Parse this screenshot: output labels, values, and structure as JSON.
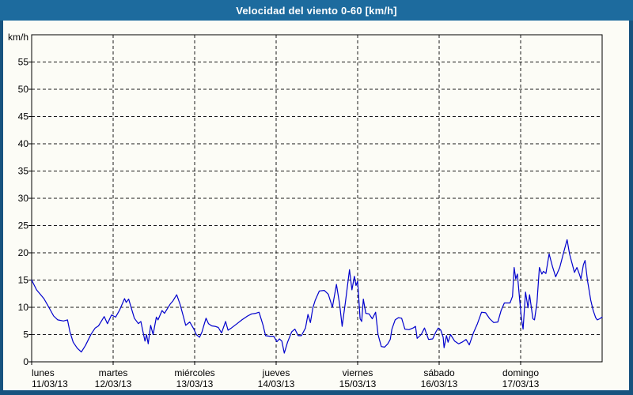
{
  "window": {
    "title": "Velocidad del viento 0-60 [km/h]"
  },
  "colors": {
    "titlebar_bg": "#1d6b9e",
    "titlebar_text": "#ffffff",
    "frame_border": "#17537f",
    "panel_bg": "#fcfcf6",
    "plot_frame": "#000000",
    "grid": "#1a1a1a",
    "line": "#0000cd",
    "axis_text": "#000000"
  },
  "chart_data": {
    "type": "line",
    "title": "Velocidad del viento 0-60 [km/h]",
    "ylabel": "km/h",
    "xlabel": "",
    "ylim": [
      0,
      60
    ],
    "grid": "dashed",
    "legend_position": "none",
    "y_axis": {
      "unit_label": "km/h",
      "tick_step": 5,
      "tick_labels": [
        0,
        5,
        10,
        15,
        20,
        25,
        30,
        35,
        40,
        45,
        50,
        55
      ]
    },
    "x_axis": {
      "days": [
        {
          "name": "lunes",
          "date": "11/03/13"
        },
        {
          "name": "martes",
          "date": "12/03/13"
        },
        {
          "name": "miércoles",
          "date": "13/03/13"
        },
        {
          "name": "jueves",
          "date": "14/03/13"
        },
        {
          "name": "viernes",
          "date": "15/03/13"
        },
        {
          "name": "sábado",
          "date": "16/03/13"
        },
        {
          "name": "domingo",
          "date": "17/03/13"
        }
      ],
      "span_days": 7
    },
    "series": [
      {
        "name": "Velocidad del viento",
        "color": "#0000cd",
        "x_unit": "days_since_start",
        "y_unit": "km/h",
        "points": [
          [
            0.0,
            15.0
          ],
          [
            0.06,
            13.2
          ],
          [
            0.15,
            11.6
          ],
          [
            0.2,
            10.3
          ],
          [
            0.27,
            8.4
          ],
          [
            0.32,
            7.7
          ],
          [
            0.39,
            7.5
          ],
          [
            0.44,
            7.7
          ],
          [
            0.47,
            5.5
          ],
          [
            0.51,
            3.6
          ],
          [
            0.56,
            2.5
          ],
          [
            0.61,
            1.8
          ],
          [
            0.66,
            3.0
          ],
          [
            0.73,
            5.1
          ],
          [
            0.78,
            6.2
          ],
          [
            0.82,
            6.6
          ],
          [
            0.89,
            8.3
          ],
          [
            0.93,
            7.0
          ],
          [
            0.98,
            8.6
          ],
          [
            1.03,
            8.2
          ],
          [
            1.08,
            9.5
          ],
          [
            1.14,
            11.6
          ],
          [
            1.16,
            10.9
          ],
          [
            1.19,
            11.5
          ],
          [
            1.26,
            8.0
          ],
          [
            1.31,
            7.0
          ],
          [
            1.34,
            7.4
          ],
          [
            1.39,
            3.8
          ],
          [
            1.41,
            5.0
          ],
          [
            1.43,
            3.3
          ],
          [
            1.46,
            6.7
          ],
          [
            1.49,
            5.0
          ],
          [
            1.53,
            8.2
          ],
          [
            1.55,
            7.7
          ],
          [
            1.6,
            9.4
          ],
          [
            1.63,
            8.9
          ],
          [
            1.7,
            10.6
          ],
          [
            1.73,
            11.1
          ],
          [
            1.78,
            12.3
          ],
          [
            1.82,
            10.6
          ],
          [
            1.86,
            8.4
          ],
          [
            1.89,
            6.7
          ],
          [
            1.94,
            7.3
          ],
          [
            1.99,
            6.0
          ],
          [
            2.02,
            5.0
          ],
          [
            2.06,
            4.5
          ],
          [
            2.09,
            5.5
          ],
          [
            2.11,
            6.5
          ],
          [
            2.14,
            8.0
          ],
          [
            2.17,
            7.0
          ],
          [
            2.21,
            6.6
          ],
          [
            2.25,
            6.5
          ],
          [
            2.29,
            6.3
          ],
          [
            2.33,
            5.3
          ],
          [
            2.38,
            7.4
          ],
          [
            2.41,
            5.8
          ],
          [
            2.45,
            6.2
          ],
          [
            2.52,
            7.0
          ],
          [
            2.58,
            7.7
          ],
          [
            2.65,
            8.4
          ],
          [
            2.7,
            8.8
          ],
          [
            2.75,
            8.9
          ],
          [
            2.79,
            9.1
          ],
          [
            2.84,
            6.7
          ],
          [
            2.87,
            4.8
          ],
          [
            2.92,
            4.7
          ],
          [
            2.97,
            4.7
          ],
          [
            3.01,
            3.7
          ],
          [
            3.04,
            4.2
          ],
          [
            3.07,
            3.8
          ],
          [
            3.1,
            1.6
          ],
          [
            3.14,
            3.6
          ],
          [
            3.19,
            5.5
          ],
          [
            3.23,
            6.0
          ],
          [
            3.27,
            4.8
          ],
          [
            3.31,
            4.8
          ],
          [
            3.36,
            6.2
          ],
          [
            3.39,
            8.7
          ],
          [
            3.42,
            7.2
          ],
          [
            3.45,
            9.9
          ],
          [
            3.48,
            11.3
          ],
          [
            3.53,
            13.0
          ],
          [
            3.59,
            13.1
          ],
          [
            3.64,
            12.4
          ],
          [
            3.69,
            10.0
          ],
          [
            3.74,
            14.2
          ],
          [
            3.78,
            10.5
          ],
          [
            3.81,
            6.5
          ],
          [
            3.85,
            11.0
          ],
          [
            3.9,
            16.9
          ],
          [
            3.93,
            13.2
          ],
          [
            3.96,
            15.7
          ],
          [
            3.98,
            14.0
          ],
          [
            4.0,
            14.8
          ],
          [
            4.03,
            7.9
          ],
          [
            4.05,
            7.4
          ],
          [
            4.07,
            11.5
          ],
          [
            4.1,
            8.9
          ],
          [
            4.14,
            8.8
          ],
          [
            4.18,
            7.9
          ],
          [
            4.22,
            9.1
          ],
          [
            4.25,
            5.0
          ],
          [
            4.29,
            2.8
          ],
          [
            4.33,
            2.7
          ],
          [
            4.37,
            3.3
          ],
          [
            4.4,
            4.1
          ],
          [
            4.42,
            6.0
          ],
          [
            4.46,
            7.7
          ],
          [
            4.5,
            8.1
          ],
          [
            4.54,
            8.0
          ],
          [
            4.58,
            6.0
          ],
          [
            4.63,
            5.9
          ],
          [
            4.68,
            6.2
          ],
          [
            4.71,
            6.5
          ],
          [
            4.73,
            4.3
          ],
          [
            4.78,
            5.0
          ],
          [
            4.82,
            6.2
          ],
          [
            4.87,
            4.1
          ],
          [
            4.92,
            4.2
          ],
          [
            4.96,
            5.5
          ],
          [
            4.99,
            6.2
          ],
          [
            5.02,
            5.8
          ],
          [
            5.05,
            4.5
          ],
          [
            5.06,
            2.6
          ],
          [
            5.09,
            4.8
          ],
          [
            5.11,
            3.6
          ],
          [
            5.14,
            5.0
          ],
          [
            5.19,
            3.8
          ],
          [
            5.24,
            3.3
          ],
          [
            5.28,
            3.6
          ],
          [
            5.33,
            4.1
          ],
          [
            5.37,
            3.1
          ],
          [
            5.42,
            5.3
          ],
          [
            5.47,
            7.0
          ],
          [
            5.52,
            9.1
          ],
          [
            5.57,
            9.0
          ],
          [
            5.62,
            7.9
          ],
          [
            5.67,
            7.2
          ],
          [
            5.72,
            7.3
          ],
          [
            5.76,
            9.4
          ],
          [
            5.8,
            10.8
          ],
          [
            5.87,
            10.8
          ],
          [
            5.9,
            12.0
          ],
          [
            5.92,
            17.3
          ],
          [
            5.94,
            15.2
          ],
          [
            5.96,
            16.1
          ],
          [
            5.99,
            11.0
          ],
          [
            6.01,
            8.0
          ],
          [
            6.03,
            6.0
          ],
          [
            6.06,
            12.8
          ],
          [
            6.09,
            9.9
          ],
          [
            6.11,
            12.3
          ],
          [
            6.15,
            7.9
          ],
          [
            6.17,
            7.7
          ],
          [
            6.2,
            10.8
          ],
          [
            6.23,
            17.3
          ],
          [
            6.26,
            16.1
          ],
          [
            6.28,
            16.6
          ],
          [
            6.31,
            16.2
          ],
          [
            6.35,
            19.8
          ],
          [
            6.39,
            17.5
          ],
          [
            6.43,
            15.6
          ],
          [
            6.48,
            17.3
          ],
          [
            6.53,
            20.2
          ],
          [
            6.57,
            22.4
          ],
          [
            6.6,
            19.8
          ],
          [
            6.63,
            18.1
          ],
          [
            6.66,
            16.4
          ],
          [
            6.69,
            17.3
          ],
          [
            6.72,
            16.1
          ],
          [
            6.74,
            15.2
          ],
          [
            6.77,
            17.8
          ],
          [
            6.79,
            18.6
          ],
          [
            6.82,
            14.9
          ],
          [
            6.86,
            11.3
          ],
          [
            6.89,
            9.4
          ],
          [
            6.92,
            8.1
          ],
          [
            6.94,
            7.7
          ],
          [
            6.97,
            7.9
          ],
          [
            7.0,
            8.2
          ]
        ]
      }
    ]
  }
}
